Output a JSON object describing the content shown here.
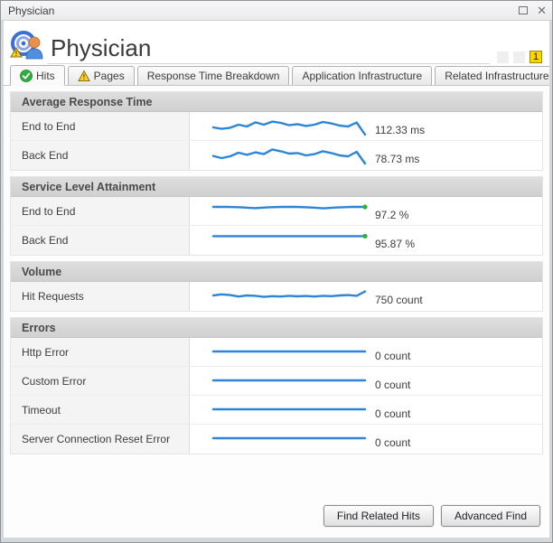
{
  "window": {
    "title": "Physician"
  },
  "header": {
    "title": "Physician",
    "badges": [
      "",
      "",
      "1"
    ]
  },
  "tabs": [
    {
      "label": "Hits",
      "icon": "status-ok",
      "active": true
    },
    {
      "label": "Pages",
      "icon": "status-warning",
      "active": false
    },
    {
      "label": "Response Time Breakdown",
      "icon": "",
      "active": false
    },
    {
      "label": "Application Infrastructure",
      "icon": "",
      "active": false
    },
    {
      "label": "Related Infrastructure",
      "icon": "",
      "active": false
    }
  ],
  "sections": [
    {
      "title": "Average Response Time",
      "rows": [
        {
          "label": "End to End",
          "value": "112.33 ms",
          "spark": {
            "points": [
              0.6,
              0.68,
              0.62,
              0.45,
              0.55,
              0.32,
              0.45,
              0.28,
              0.35,
              0.48,
              0.42,
              0.52,
              0.45,
              0.3,
              0.38,
              0.5,
              0.55,
              0.33,
              1.0
            ],
            "end_dot": ""
          }
        },
        {
          "label": "Back End",
          "value": "78.73 ms",
          "spark": {
            "points": [
              0.58,
              0.7,
              0.6,
              0.4,
              0.52,
              0.38,
              0.48,
              0.22,
              0.32,
              0.45,
              0.42,
              0.55,
              0.48,
              0.32,
              0.42,
              0.55,
              0.6,
              0.35,
              1.0
            ],
            "end_dot": ""
          }
        }
      ]
    },
    {
      "title": "Service Level Attainment",
      "rows": [
        {
          "label": "End to End",
          "value": "97.2 %",
          "spark": {
            "points": [
              0.3,
              0.3,
              0.32,
              0.37,
              0.32,
              0.3,
              0.3,
              0.33,
              0.38,
              0.33,
              0.3,
              0.3
            ],
            "end_dot": "#2eb135"
          }
        },
        {
          "label": "Back End",
          "value": "95.87 %",
          "spark": {
            "points": [
              0.32,
              0.32,
              0.32,
              0.32,
              0.32,
              0.32,
              0.32,
              0.32,
              0.32,
              0.32,
              0.32,
              0.32
            ],
            "end_dot": "#2eb135"
          }
        }
      ]
    },
    {
      "title": "Volume",
      "rows": [
        {
          "label": "Hit Requests",
          "value": "750 count",
          "spark": {
            "points": [
              0.5,
              0.44,
              0.48,
              0.56,
              0.5,
              0.52,
              0.58,
              0.54,
              0.56,
              0.52,
              0.55,
              0.53,
              0.56,
              0.52,
              0.54,
              0.5,
              0.48,
              0.52,
              0.28
            ],
            "end_dot": ""
          }
        }
      ]
    },
    {
      "title": "Errors",
      "rows": [
        {
          "label": "Http Error",
          "value": "0 count",
          "spark": {
            "points": [
              0.5,
              0.5
            ],
            "end_dot": ""
          }
        },
        {
          "label": "Custom Error",
          "value": "0 count",
          "spark": {
            "points": [
              0.5,
              0.5
            ],
            "end_dot": ""
          }
        },
        {
          "label": "Timeout",
          "value": "0 count",
          "spark": {
            "points": [
              0.5,
              0.5
            ],
            "end_dot": ""
          }
        },
        {
          "label": "Server Connection Reset Error",
          "value": "0 count",
          "spark": {
            "points": [
              0.5,
              0.5
            ],
            "end_dot": ""
          }
        }
      ]
    }
  ],
  "footer": {
    "buttons": [
      "Find Related Hits",
      "Advanced Find"
    ]
  },
  "colors": {
    "spark_blue": "#2d85d8",
    "sla_green": "#2eb135",
    "alert_yellow": "#fcd500"
  }
}
